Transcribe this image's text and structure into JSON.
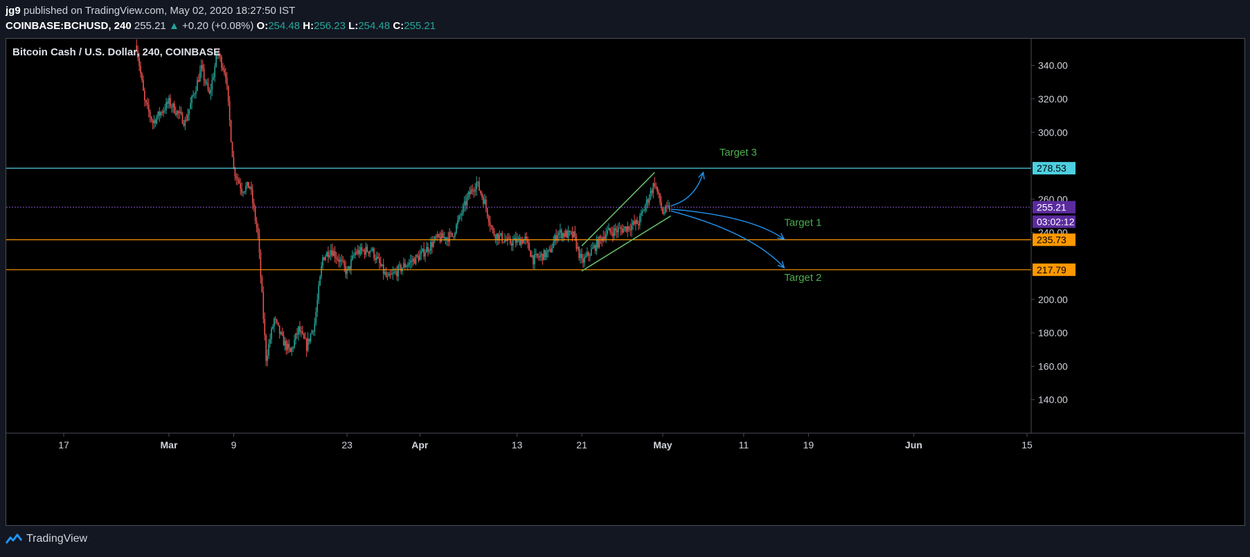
{
  "header": {
    "author": "jg9",
    "published_text": "published on TradingView.com, May 02, 2020 18:27:50 IST",
    "symbol": "COINBASE:BCHUSD, 240",
    "last_price": "255.21",
    "change_arrow": "▲",
    "change": "+0.20 (+0.08%)",
    "o_label": "O:",
    "o_value": "254.48",
    "h_label": "H:",
    "h_value": "256.23",
    "l_label": "L:",
    "l_value": "254.48",
    "c_label": "C:",
    "c_value": "255.21"
  },
  "chart_title": "Bitcoin Cash / U.S. Dollar, 240, COINBASE",
  "footer": {
    "brand": "TradingView",
    "brand_icon": "tradingview-logo-icon"
  },
  "colors": {
    "background": "#000000",
    "up": "#26a69a",
    "down": "#ef5350",
    "cyan_line": "#4dd0e1",
    "orange_line": "#ff9800",
    "trend_line": "#66bb6a",
    "arrow": "#2196f3",
    "target_text": "#4caf50",
    "last_price_bg": "#5b2b9e"
  },
  "chart_data": {
    "type": "candlestick",
    "title": "Bitcoin Cash / U.S. Dollar, 240, COINBASE",
    "ylim": [
      120,
      356
    ],
    "y_ticks": [
      140,
      160,
      180,
      200,
      220,
      240,
      260,
      280,
      300,
      320,
      340
    ],
    "y_tick_labels": [
      "140.00",
      "160.00",
      "180.00",
      "200.00",
      "",
      "240.00",
      "260.00",
      "",
      "300.00",
      "320.00",
      "340.00"
    ],
    "x_ticks": [
      {
        "label": "17",
        "date": "2020-02-17"
      },
      {
        "label": "Mar",
        "date": "2020-03-01"
      },
      {
        "label": "9",
        "date": "2020-03-09"
      },
      {
        "label": "23",
        "date": "2020-03-23"
      },
      {
        "label": "Apr",
        "date": "2020-04-01"
      },
      {
        "label": "13",
        "date": "2020-04-13"
      },
      {
        "label": "21",
        "date": "2020-04-21"
      },
      {
        "label": "May",
        "date": "2020-05-01"
      },
      {
        "label": "11",
        "date": "2020-05-11"
      },
      {
        "label": "19",
        "date": "2020-05-19"
      },
      {
        "label": "Jun",
        "date": "2020-06-01"
      },
      {
        "label": "15",
        "date": "2020-06-15"
      }
    ],
    "price_path": [
      [
        "2020-02-26",
        352
      ],
      [
        "2020-02-27",
        318
      ],
      [
        "2020-02-28",
        306
      ],
      [
        "2020-03-01",
        318
      ],
      [
        "2020-03-03",
        306
      ],
      [
        "2020-03-05",
        338
      ],
      [
        "2020-03-06",
        322
      ],
      [
        "2020-03-07",
        348
      ],
      [
        "2020-03-08",
        335
      ],
      [
        "2020-03-09",
        278
      ],
      [
        "2020-03-10",
        266
      ],
      [
        "2020-03-11",
        268
      ],
      [
        "2020-03-12",
        238
      ],
      [
        "2020-03-13",
        165
      ],
      [
        "2020-03-14",
        188
      ],
      [
        "2020-03-15",
        176
      ],
      [
        "2020-03-16",
        168
      ],
      [
        "2020-03-17",
        182
      ],
      [
        "2020-03-18",
        172
      ],
      [
        "2020-03-19",
        186
      ],
      [
        "2020-03-20",
        225
      ],
      [
        "2020-03-21",
        230
      ],
      [
        "2020-03-22",
        224
      ],
      [
        "2020-03-23",
        216
      ],
      [
        "2020-03-24",
        228
      ],
      [
        "2020-03-26",
        230
      ],
      [
        "2020-03-28",
        212
      ],
      [
        "2020-03-30",
        220
      ],
      [
        "2020-04-01",
        226
      ],
      [
        "2020-04-03",
        236
      ],
      [
        "2020-04-05",
        238
      ],
      [
        "2020-04-07",
        262
      ],
      [
        "2020-04-08",
        270
      ],
      [
        "2020-04-09",
        258
      ],
      [
        "2020-04-10",
        240
      ],
      [
        "2020-04-12",
        234
      ],
      [
        "2020-04-14",
        236
      ],
      [
        "2020-04-15",
        224
      ],
      [
        "2020-04-17",
        228
      ],
      [
        "2020-04-18",
        240
      ],
      [
        "2020-04-20",
        238
      ],
      [
        "2020-04-21",
        222
      ],
      [
        "2020-04-22",
        228
      ],
      [
        "2020-04-24",
        240
      ],
      [
        "2020-04-26",
        242
      ],
      [
        "2020-04-28",
        246
      ],
      [
        "2020-04-29",
        258
      ],
      [
        "2020-04-30",
        270
      ],
      [
        "2020-05-01",
        252
      ],
      [
        "2020-05-02",
        255.21
      ]
    ],
    "horizontal_levels": [
      {
        "price": 278.53,
        "label": "278.53",
        "color": "#4dd0e1"
      },
      {
        "price": 235.73,
        "label": "235.73",
        "color": "#ff9800"
      },
      {
        "price": 217.79,
        "label": "217.79",
        "color": "#ff9800"
      }
    ],
    "last_price": {
      "price": 255.21,
      "label": "255.21",
      "countdown": "03:02:12"
    },
    "trend_lines": [
      {
        "from": [
          "2020-04-21",
          217
        ],
        "to": [
          "2020-05-02",
          250
        ]
      },
      {
        "from": [
          "2020-04-21",
          232
        ],
        "to": [
          "2020-04-30",
          276
        ]
      }
    ],
    "annotations": [
      {
        "text": "Target 3",
        "date": "2020-05-08",
        "price": 286
      },
      {
        "text": "Target 1",
        "date": "2020-05-16",
        "price": 244
      },
      {
        "text": "Target 2",
        "date": "2020-05-16",
        "price": 211
      }
    ],
    "projection_arrows": [
      {
        "from": [
          "2020-05-02",
          256
        ],
        "ctrl": [
          "2020-05-05",
          260
        ],
        "to": [
          "2020-05-06",
          276
        ]
      },
      {
        "from": [
          "2020-05-02",
          254
        ],
        "ctrl": [
          "2020-05-12",
          250
        ],
        "to": [
          "2020-05-16",
          236
        ]
      },
      {
        "from": [
          "2020-05-02",
          253
        ],
        "ctrl": [
          "2020-05-12",
          240
        ],
        "to": [
          "2020-05-16",
          219
        ]
      }
    ]
  }
}
